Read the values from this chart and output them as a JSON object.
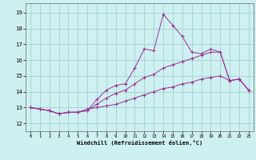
{
  "xlabel": "Windchill (Refroidissement éolien,°C)",
  "background_color": "#cff0f0",
  "grid_color": "#99cccc",
  "line_color": "#993399",
  "x_ticks": [
    0,
    1,
    2,
    3,
    4,
    5,
    6,
    7,
    8,
    9,
    10,
    11,
    12,
    13,
    14,
    15,
    16,
    17,
    18,
    19,
    20,
    21,
    22,
    23
  ],
  "y_ticks": [
    12,
    13,
    14,
    15,
    16,
    17,
    18,
    19
  ],
  "xlim": [
    -0.5,
    23.5
  ],
  "ylim": [
    11.5,
    19.6
  ],
  "series": [
    {
      "x": [
        0,
        1,
        2,
        3,
        4,
        5,
        6,
        7,
        8,
        9,
        10,
        11,
        12,
        13,
        14,
        15,
        16,
        17,
        18,
        19,
        20,
        21,
        22,
        23
      ],
      "y": [
        13.0,
        12.9,
        12.8,
        12.6,
        12.7,
        12.7,
        12.8,
        13.5,
        14.1,
        14.4,
        14.5,
        15.5,
        16.7,
        16.6,
        18.9,
        18.2,
        17.5,
        16.5,
        16.4,
        16.7,
        16.5,
        14.7,
        14.8,
        14.1
      ]
    },
    {
      "x": [
        0,
        1,
        2,
        3,
        4,
        5,
        6,
        7,
        8,
        9,
        10,
        11,
        12,
        13,
        14,
        15,
        16,
        17,
        18,
        19,
        20,
        21,
        22,
        23
      ],
      "y": [
        13.0,
        12.9,
        12.8,
        12.6,
        12.7,
        12.7,
        12.8,
        13.2,
        13.6,
        13.9,
        14.1,
        14.5,
        14.9,
        15.1,
        15.5,
        15.7,
        15.9,
        16.1,
        16.3,
        16.5,
        16.5,
        14.7,
        14.8,
        14.1
      ]
    },
    {
      "x": [
        0,
        1,
        2,
        3,
        4,
        5,
        6,
        7,
        8,
        9,
        10,
        11,
        12,
        13,
        14,
        15,
        16,
        17,
        18,
        19,
        20,
        21,
        22,
        23
      ],
      "y": [
        13.0,
        12.9,
        12.8,
        12.6,
        12.7,
        12.7,
        12.9,
        13.0,
        13.1,
        13.2,
        13.4,
        13.6,
        13.8,
        14.0,
        14.2,
        14.3,
        14.5,
        14.6,
        14.8,
        14.9,
        15.0,
        14.7,
        14.8,
        14.1
      ]
    }
  ]
}
